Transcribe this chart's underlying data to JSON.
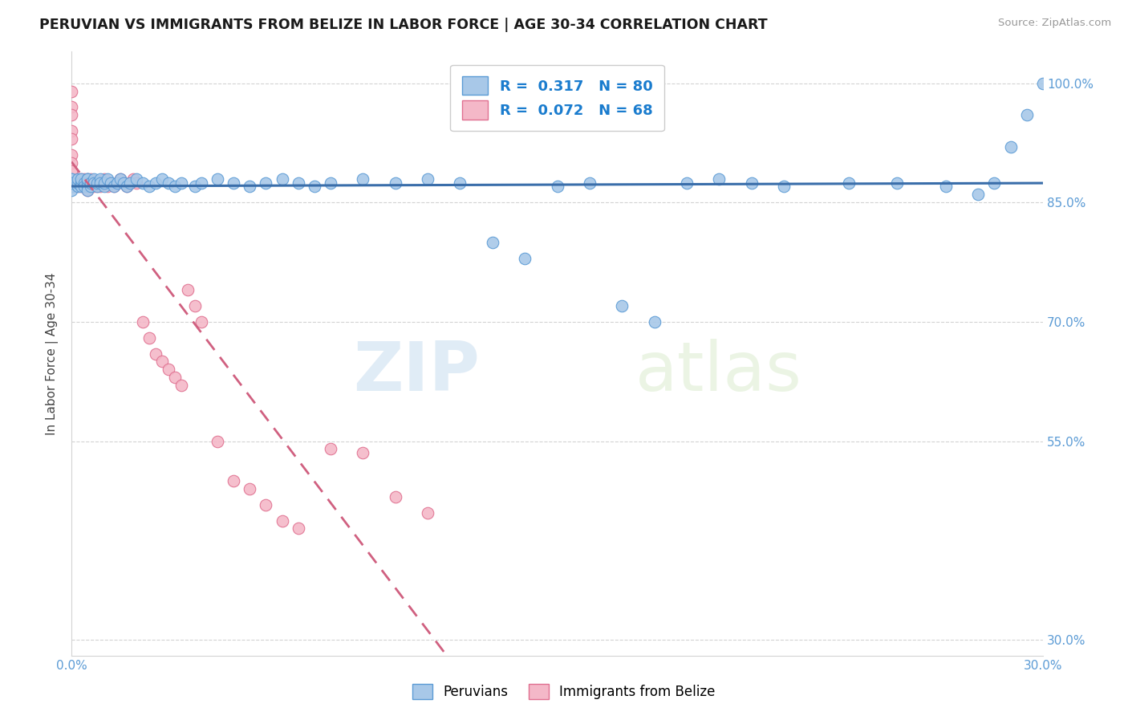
{
  "title": "PERUVIAN VS IMMIGRANTS FROM BELIZE IN LABOR FORCE | AGE 30-34 CORRELATION CHART",
  "source_text": "Source: ZipAtlas.com",
  "ylabel": "In Labor Force | Age 30-34",
  "xlim": [
    0.0,
    0.3
  ],
  "ylim": [
    0.28,
    1.04
  ],
  "x_tick_vals": [
    0.0,
    0.05,
    0.1,
    0.15,
    0.2,
    0.25,
    0.3
  ],
  "x_tick_labels": [
    "0.0%",
    "",
    "",
    "",
    "",
    "",
    "30.0%"
  ],
  "y_tick_vals": [
    0.3,
    0.55,
    0.7,
    0.85,
    1.0
  ],
  "y_tick_labels": [
    "30.0%",
    "55.0%",
    "70.0%",
    "85.0%",
    "100.0%"
  ],
  "blue_fill": "#A8C8E8",
  "blue_edge": "#5B9BD5",
  "pink_fill": "#F4B8C8",
  "pink_edge": "#E07090",
  "blue_line_color": "#3A6EAA",
  "pink_line_color": "#D06080",
  "r_blue": 0.317,
  "n_blue": 80,
  "r_pink": 0.072,
  "n_pink": 68,
  "legend_label_blue": "Peruvians",
  "legend_label_pink": "Immigrants from Belize",
  "watermark_zip": "ZIP",
  "watermark_atlas": "atlas",
  "blue_x": [
    0.0,
    0.0,
    0.0,
    0.0,
    0.0,
    0.0,
    0.0,
    0.0,
    0.002,
    0.002,
    0.002,
    0.003,
    0.003,
    0.003,
    0.004,
    0.004,
    0.005,
    0.005,
    0.005,
    0.005,
    0.005,
    0.006,
    0.006,
    0.006,
    0.007,
    0.007,
    0.008,
    0.008,
    0.009,
    0.009,
    0.01,
    0.01,
    0.011,
    0.012,
    0.013,
    0.014,
    0.015,
    0.016,
    0.017,
    0.018,
    0.02,
    0.022,
    0.024,
    0.026,
    0.028,
    0.03,
    0.032,
    0.034,
    0.038,
    0.04,
    0.045,
    0.05,
    0.055,
    0.06,
    0.065,
    0.07,
    0.075,
    0.08,
    0.09,
    0.1,
    0.11,
    0.12,
    0.13,
    0.14,
    0.15,
    0.16,
    0.17,
    0.18,
    0.19,
    0.2,
    0.21,
    0.22,
    0.24,
    0.255,
    0.27,
    0.28,
    0.285,
    0.29,
    0.295,
    0.3
  ],
  "blue_y": [
    0.87,
    0.875,
    0.88,
    0.875,
    0.87,
    0.865,
    0.88,
    0.875,
    0.87,
    0.875,
    0.88,
    0.875,
    0.87,
    0.88,
    0.875,
    0.87,
    0.88,
    0.875,
    0.87,
    0.865,
    0.88,
    0.875,
    0.87,
    0.875,
    0.88,
    0.875,
    0.87,
    0.875,
    0.88,
    0.875,
    0.87,
    0.875,
    0.88,
    0.875,
    0.87,
    0.875,
    0.88,
    0.875,
    0.87,
    0.875,
    0.88,
    0.875,
    0.87,
    0.875,
    0.88,
    0.875,
    0.87,
    0.875,
    0.87,
    0.875,
    0.88,
    0.875,
    0.87,
    0.875,
    0.88,
    0.875,
    0.87,
    0.875,
    0.88,
    0.875,
    0.88,
    0.875,
    0.8,
    0.78,
    0.87,
    0.875,
    0.72,
    0.7,
    0.875,
    0.88,
    0.875,
    0.87,
    0.875,
    0.875,
    0.87,
    0.86,
    0.875,
    0.92,
    0.96,
    1.0
  ],
  "pink_x": [
    0.0,
    0.0,
    0.0,
    0.0,
    0.0,
    0.0,
    0.0,
    0.0,
    0.0,
    0.001,
    0.001,
    0.002,
    0.002,
    0.002,
    0.003,
    0.003,
    0.003,
    0.003,
    0.004,
    0.004,
    0.004,
    0.004,
    0.005,
    0.005,
    0.005,
    0.005,
    0.005,
    0.006,
    0.006,
    0.006,
    0.007,
    0.007,
    0.008,
    0.008,
    0.009,
    0.009,
    0.01,
    0.01,
    0.011,
    0.012,
    0.013,
    0.014,
    0.015,
    0.016,
    0.017,
    0.018,
    0.019,
    0.02,
    0.022,
    0.024,
    0.026,
    0.028,
    0.03,
    0.032,
    0.034,
    0.036,
    0.038,
    0.04,
    0.045,
    0.05,
    0.055,
    0.06,
    0.065,
    0.07,
    0.08,
    0.09,
    0.1,
    0.11
  ],
  "pink_y": [
    0.99,
    0.97,
    0.96,
    0.94,
    0.93,
    0.91,
    0.9,
    0.89,
    0.875,
    0.87,
    0.875,
    0.88,
    0.87,
    0.875,
    0.88,
    0.875,
    0.87,
    0.875,
    0.88,
    0.875,
    0.87,
    0.875,
    0.88,
    0.875,
    0.87,
    0.865,
    0.875,
    0.88,
    0.875,
    0.87,
    0.875,
    0.87,
    0.875,
    0.87,
    0.875,
    0.87,
    0.88,
    0.875,
    0.87,
    0.875,
    0.87,
    0.875,
    0.88,
    0.875,
    0.87,
    0.875,
    0.88,
    0.875,
    0.7,
    0.68,
    0.66,
    0.65,
    0.64,
    0.63,
    0.62,
    0.74,
    0.72,
    0.7,
    0.55,
    0.5,
    0.49,
    0.47,
    0.45,
    0.44,
    0.54,
    0.535,
    0.48,
    0.46
  ]
}
